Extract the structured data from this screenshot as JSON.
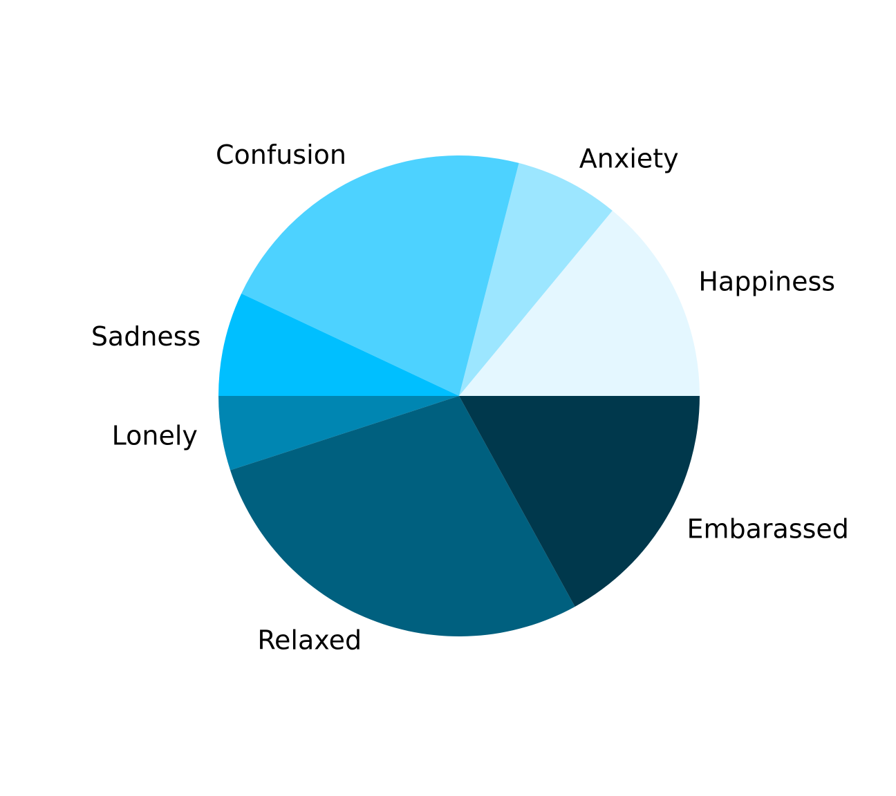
{
  "chart_data": {
    "type": "pie",
    "title": "",
    "start_angle_deg": 0,
    "direction": "counterclockwise",
    "slices": [
      {
        "label": "Happiness",
        "value": 14,
        "color": "#E4F7FF"
      },
      {
        "label": "Anxiety",
        "value": 7,
        "color": "#9CE6FF"
      },
      {
        "label": "Confusion",
        "value": 22,
        "color": "#4DD2FF"
      },
      {
        "label": "Sadness",
        "value": 7,
        "color": "#00BFFF"
      },
      {
        "label": "Lonely",
        "value": 5,
        "color": "#0086B2"
      },
      {
        "label": "Relaxed",
        "value": 28,
        "color": "#00607F"
      },
      {
        "label": "Embarassed",
        "value": 17,
        "color": "#00384C"
      }
    ]
  }
}
